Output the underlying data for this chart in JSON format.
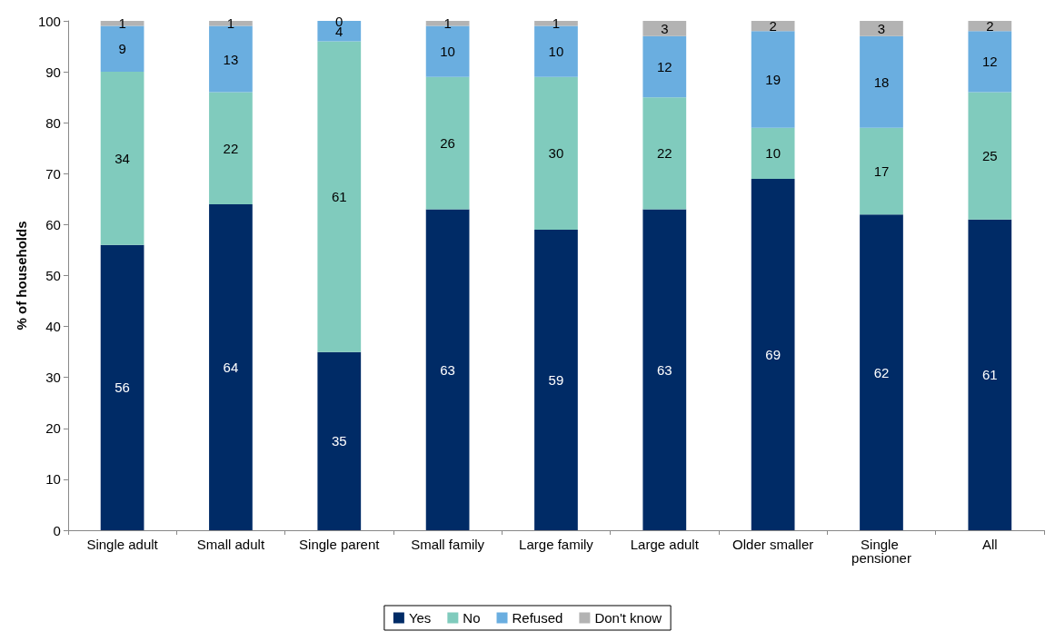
{
  "chart_data": {
    "type": "bar",
    "stacked": true,
    "ylabel": "% of households",
    "categories": [
      "Single adult",
      "Small adult",
      "Single parent",
      "Small family",
      "Large family",
      "Large adult",
      "Older smaller",
      "Single pensioner",
      "All"
    ],
    "series": [
      {
        "name": "Yes",
        "color": "#002b66",
        "values": [
          56,
          64,
          35,
          63,
          59,
          63,
          69,
          62,
          61
        ]
      },
      {
        "name": "No",
        "color": "#80cbbd",
        "values": [
          34,
          22,
          61,
          26,
          30,
          22,
          10,
          17,
          25
        ]
      },
      {
        "name": "Refused",
        "color": "#6aaee0",
        "values": [
          9,
          13,
          4,
          10,
          10,
          12,
          19,
          18,
          12
        ]
      },
      {
        "name": "Don't know",
        "color": "#b3b3b3",
        "values": [
          1,
          1,
          0,
          1,
          1,
          3,
          2,
          3,
          2
        ]
      }
    ],
    "ylim": [
      0,
      100
    ],
    "yticks": [
      0,
      10,
      20,
      30,
      40,
      50,
      60,
      70,
      80,
      90,
      100
    ],
    "grid": false,
    "legend": "bottom",
    "data_labels": true
  }
}
